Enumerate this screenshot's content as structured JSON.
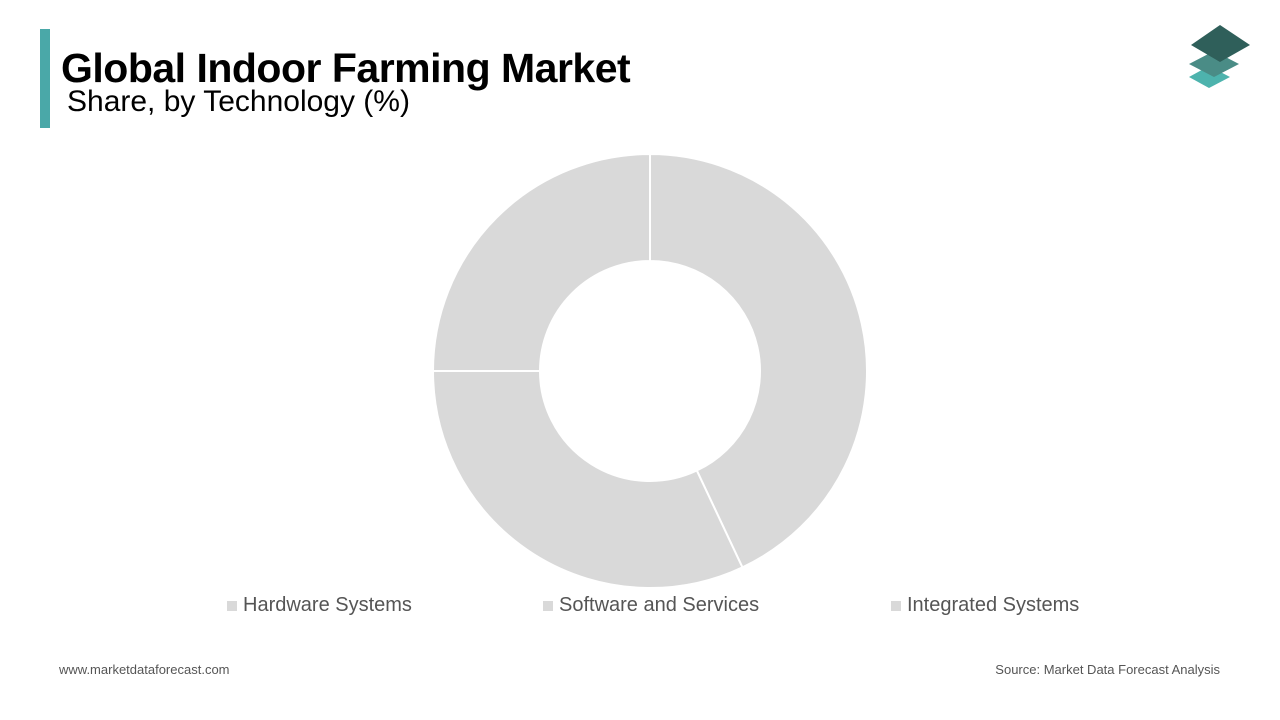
{
  "header": {
    "title": "Global Indoor Farming Market",
    "subtitle": "Share, by Technology (%)"
  },
  "colors": {
    "accent": "#4aa8a8",
    "slice": "#d9d9d9",
    "slice_border": "#ffffff",
    "legend_swatch": "#d9d9d9",
    "logo_dark": "#2f5f5a",
    "logo_mid": "#4a8c86",
    "logo_light": "#4db3ad"
  },
  "logo": {
    "icon": "layered-diamond-logo-icon"
  },
  "chart_data": {
    "type": "pie",
    "variant": "donut",
    "title": "Global Indoor Farming Market",
    "subtitle": "Share, by Technology (%)",
    "categories": [
      "Hardware Systems",
      "Software and Services",
      "Integrated Systems"
    ],
    "values": [
      43,
      32,
      25
    ],
    "start_angle_deg": 0,
    "direction": "clockwise",
    "legend_position": "bottom"
  },
  "footer": {
    "website": "www.marketdataforecast.com",
    "source": "Source: Market Data Forecast Analysis"
  }
}
